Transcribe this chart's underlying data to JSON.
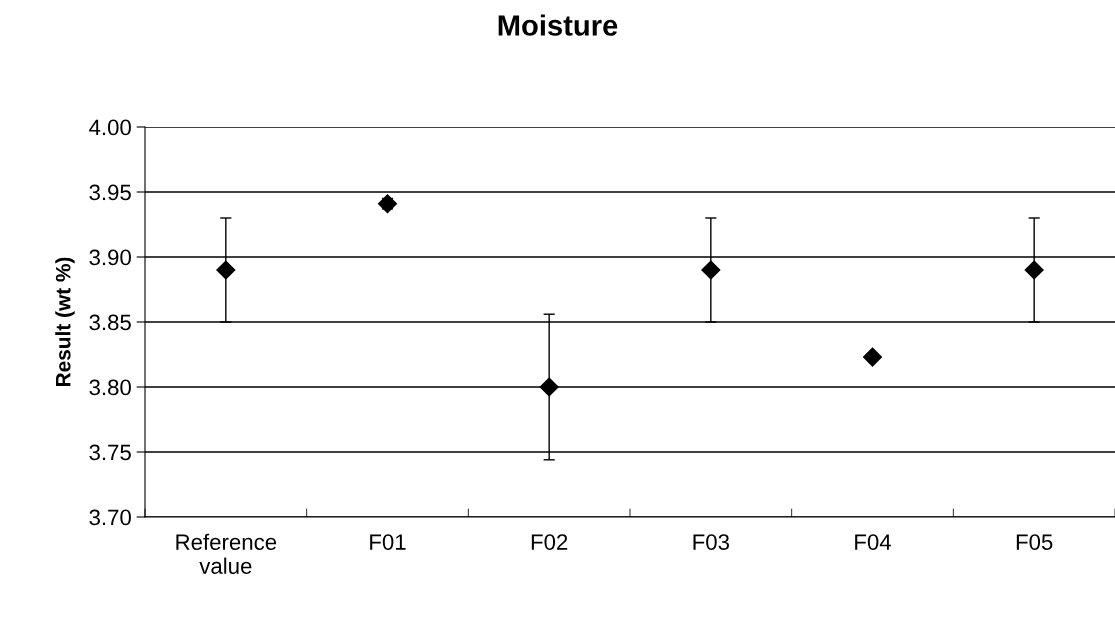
{
  "chart_data": {
    "type": "scatter",
    "title": "Moisture",
    "ylabel": "Result (wt %)",
    "categories": [
      "Reference\nvalue",
      "F01",
      "F02",
      "F03",
      "F04",
      "F05"
    ],
    "series": [
      {
        "color": "#000000",
        "values": [
          3.89,
          3.941,
          3.8,
          3.89,
          3.823,
          3.89
        ],
        "errors": [
          0.04,
          0.004,
          0.056,
          0.04,
          null,
          0.04
        ]
      }
    ],
    "ylim": [
      3.7,
      4.0
    ],
    "yticks": [
      {
        "value": 3.7,
        "label": "3.70"
      },
      {
        "value": 3.75,
        "label": "3.75"
      },
      {
        "value": 3.8,
        "label": "3.80"
      },
      {
        "value": 3.85,
        "label": "3.85"
      },
      {
        "value": 3.9,
        "label": "3.90"
      },
      {
        "value": 3.95,
        "label": "3.95"
      },
      {
        "value": 4.0,
        "label": "4.00"
      }
    ],
    "grid": "y",
    "marker": "diamond",
    "legend": false
  }
}
